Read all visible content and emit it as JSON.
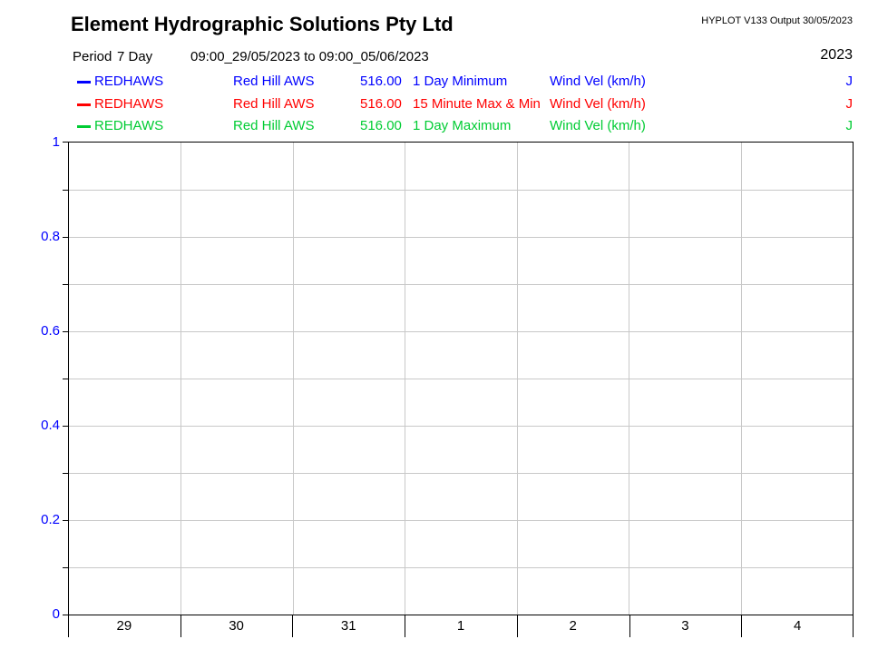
{
  "header": {
    "title": "Element Hydrographic Solutions Pty Ltd",
    "app_info": "HYPLOT V133  Output 30/05/2023",
    "period_label": "Period",
    "period_value": "7 Day",
    "period_range": "09:00_29/05/2023 to 09:00_05/06/2023",
    "year": "2023"
  },
  "legend": {
    "rows": [
      {
        "color": "#0000ff",
        "station_id": "REDHAWS",
        "station_name": "Red Hill AWS",
        "number": "516.00",
        "trace": "1 Day Minimum",
        "unit": "Wind Vel (km/h)",
        "quality": "J"
      },
      {
        "color": "#ff0000",
        "station_id": "REDHAWS",
        "station_name": "Red Hill AWS",
        "number": "516.00",
        "trace": "15 Minute Max & Min",
        "unit": "Wind Vel (km/h)",
        "quality": "J"
      },
      {
        "color": "#00cc33",
        "station_id": "REDHAWS",
        "station_name": "Red Hill AWS",
        "number": "516.00",
        "trace": "1 Day Maximum",
        "unit": "Wind Vel (km/h)",
        "quality": "J"
      }
    ]
  },
  "chart_data": {
    "type": "line",
    "title": "",
    "xlabel": "",
    "ylabel": "",
    "x_categories": [
      "29",
      "30",
      "31",
      "1",
      "2",
      "3",
      "4"
    ],
    "ylim": [
      0,
      1
    ],
    "y_gridline_step": 0.1,
    "y_labeled_ticks": [
      {
        "v": 1,
        "label": "1"
      },
      {
        "v": 0.8,
        "label": "0.8"
      },
      {
        "v": 0.6,
        "label": "0.6"
      },
      {
        "v": 0.4,
        "label": "0.4"
      },
      {
        "v": 0.2,
        "label": "0.2"
      },
      {
        "v": 0,
        "label": "0"
      }
    ],
    "series": [
      {
        "name": "1 Day Minimum",
        "color": "#0000ff",
        "values": []
      },
      {
        "name": "15 Minute Max & Min",
        "color": "#ff0000",
        "values": []
      },
      {
        "name": "1 Day Maximum",
        "color": "#00cc33",
        "values": []
      }
    ],
    "plot_empty": true,
    "grid": true,
    "grid_color": "#c8c8c8",
    "y_label_color": "#0000ff",
    "x_label_color": "#000000",
    "axis_color": "#000000"
  }
}
